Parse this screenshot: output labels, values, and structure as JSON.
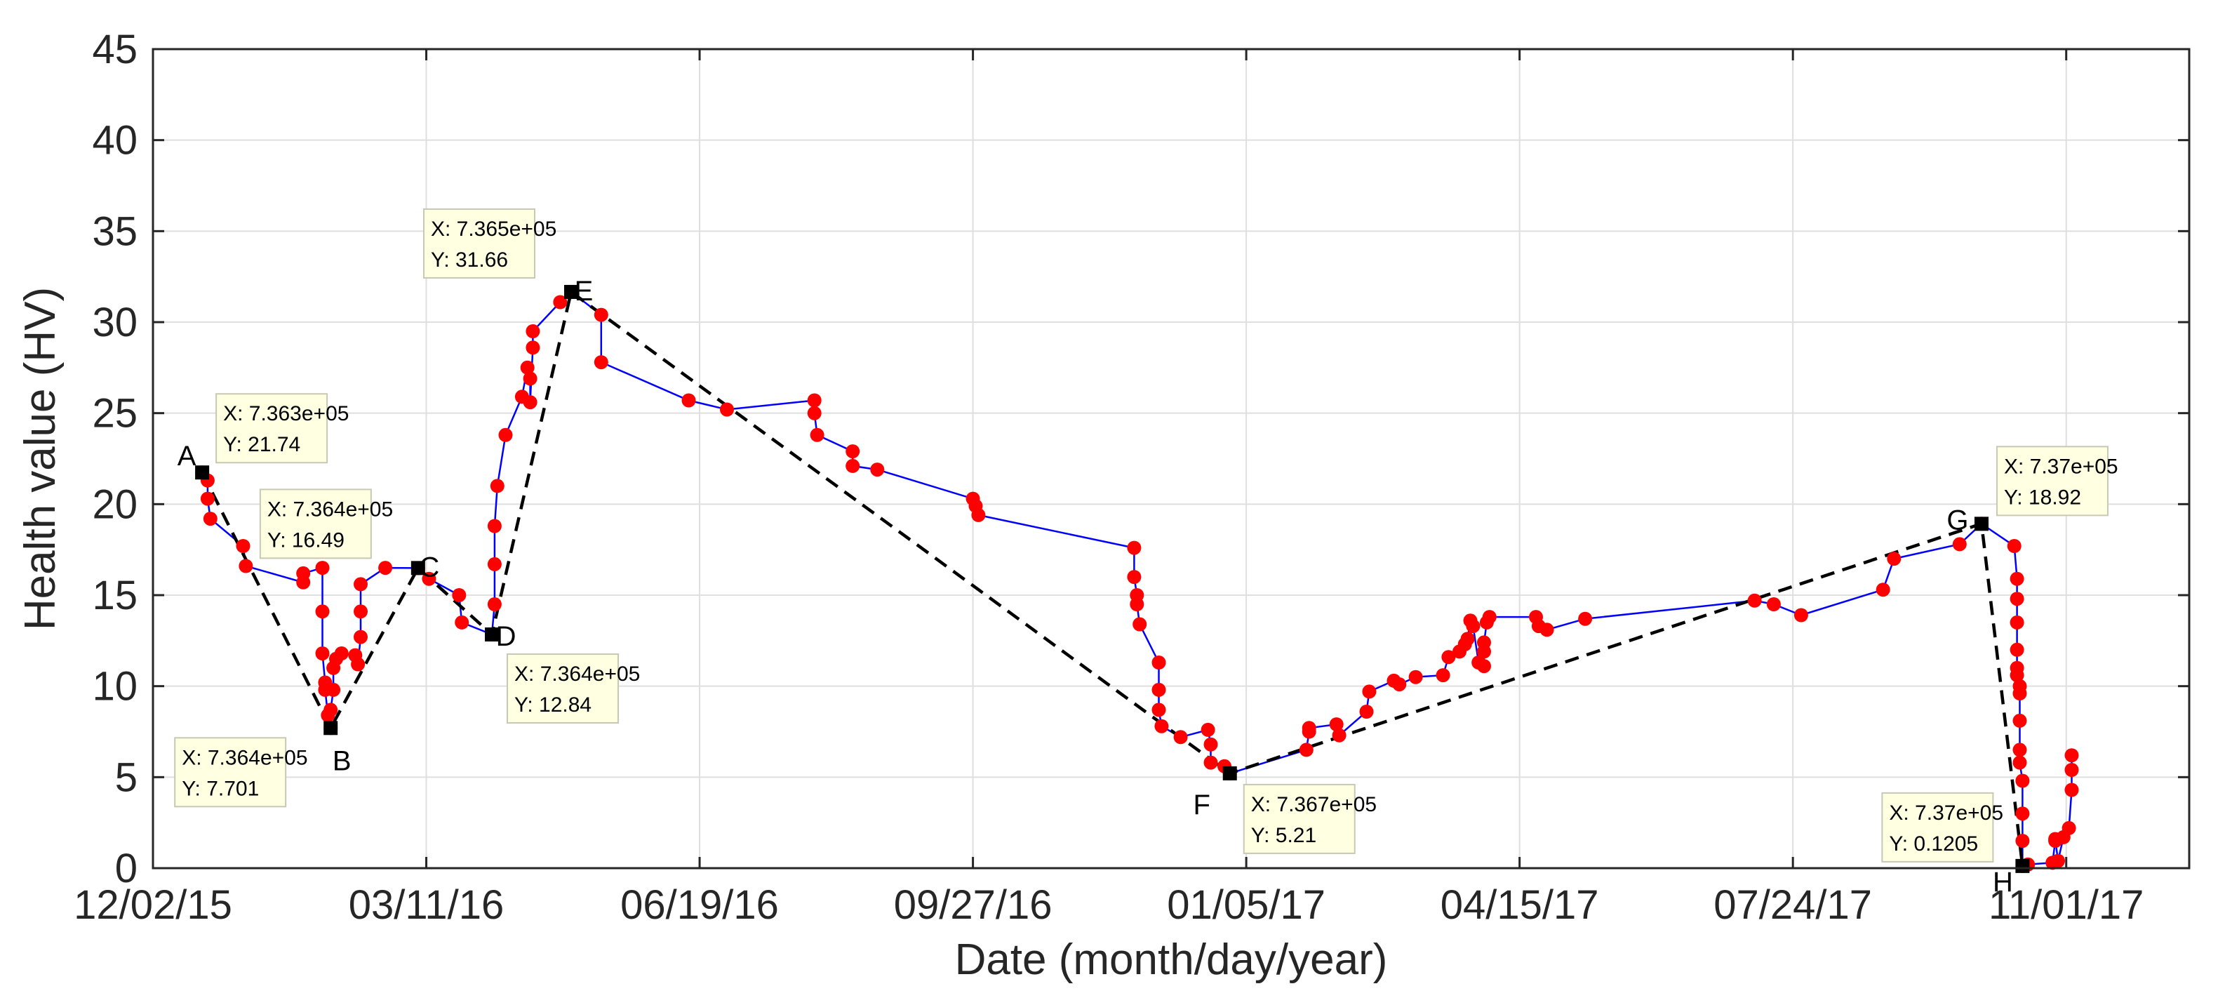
{
  "chart_data": {
    "type": "line",
    "title": "",
    "xlabel": "Date (month/day/year)",
    "ylabel": "Health value (HV)",
    "x_ticks": [
      {
        "label": "12/02/15",
        "date": "2015-12-02"
      },
      {
        "label": "03/11/16",
        "date": "2016-03-11"
      },
      {
        "label": "06/19/16",
        "date": "2016-06-19"
      },
      {
        "label": "09/27/16",
        "date": "2016-09-27"
      },
      {
        "label": "01/05/17",
        "date": "2017-01-05"
      },
      {
        "label": "04/15/17",
        "date": "2017-04-15"
      },
      {
        "label": "07/24/17",
        "date": "2017-07-24"
      },
      {
        "label": "11/01/17",
        "date": "2017-11-01"
      }
    ],
    "xlim": [
      "2015-12-02",
      "2017-12-16"
    ],
    "y_ticks": [
      "0",
      "5",
      "10",
      "15",
      "20",
      "25",
      "30",
      "35",
      "40",
      "45"
    ],
    "ylim": [
      0,
      45
    ],
    "grid": true,
    "colors": {
      "line": "#0000ff",
      "marker": "#ff0000",
      "trend": "#000000",
      "tip_bg": "#ffffe1",
      "tip_border": "#c8c8b4"
    },
    "series": [
      {
        "points": [
          [
            "2015-12-20",
            21.74
          ],
          [
            "2015-12-22",
            21.3
          ],
          [
            "2015-12-22",
            20.3
          ],
          [
            "2015-12-23",
            19.2
          ],
          [
            "2016-01-04",
            17.7
          ],
          [
            "2016-01-05",
            16.6
          ],
          [
            "2016-01-26",
            15.7
          ],
          [
            "2016-01-26",
            16.2
          ],
          [
            "2016-02-02",
            16.5
          ],
          [
            "2016-02-02",
            14.1
          ],
          [
            "2016-02-02",
            11.8
          ],
          [
            "2016-02-03",
            10.2
          ],
          [
            "2016-02-03",
            9.8
          ],
          [
            "2016-02-04",
            8.4
          ],
          [
            "2016-02-05",
            7.701
          ],
          [
            "2016-02-05",
            8.7
          ],
          [
            "2016-02-06",
            9.8
          ],
          [
            "2016-02-06",
            11.0
          ],
          [
            "2016-02-07",
            11.5
          ],
          [
            "2016-02-09",
            11.8
          ],
          [
            "2016-02-14",
            11.7
          ],
          [
            "2016-02-15",
            11.2
          ],
          [
            "2016-02-16",
            12.7
          ],
          [
            "2016-02-16",
            14.1
          ],
          [
            "2016-02-16",
            15.6
          ],
          [
            "2016-02-25",
            16.5
          ],
          [
            "2016-03-08",
            16.49
          ],
          [
            "2016-03-12",
            15.9
          ],
          [
            "2016-03-23",
            15.0
          ],
          [
            "2016-03-24",
            13.5
          ],
          [
            "2016-04-04",
            12.84
          ],
          [
            "2016-04-05",
            14.5
          ],
          [
            "2016-04-05",
            16.7
          ],
          [
            "2016-04-05",
            18.8
          ],
          [
            "2016-04-06",
            21.0
          ],
          [
            "2016-04-09",
            23.8
          ],
          [
            "2016-04-15",
            25.9
          ],
          [
            "2016-04-17",
            27.5
          ],
          [
            "2016-04-18",
            26.9
          ],
          [
            "2016-04-18",
            25.6
          ],
          [
            "2016-04-19",
            28.6
          ],
          [
            "2016-04-19",
            29.5
          ],
          [
            "2016-04-29",
            31.1
          ],
          [
            "2016-05-03",
            31.66
          ],
          [
            "2016-05-14",
            30.4
          ],
          [
            "2016-05-14",
            27.8
          ],
          [
            "2016-06-15",
            25.7
          ],
          [
            "2016-06-29",
            25.2
          ],
          [
            "2016-07-31",
            25.7
          ],
          [
            "2016-07-31",
            25.0
          ],
          [
            "2016-08-01",
            23.8
          ],
          [
            "2016-08-14",
            22.9
          ],
          [
            "2016-08-14",
            22.1
          ],
          [
            "2016-08-23",
            21.9
          ],
          [
            "2016-09-27",
            20.3
          ],
          [
            "2016-09-28",
            19.9
          ],
          [
            "2016-09-29",
            19.4
          ],
          [
            "2016-11-25",
            17.6
          ],
          [
            "2016-11-25",
            16.0
          ],
          [
            "2016-11-26",
            15.0
          ],
          [
            "2016-11-26",
            14.5
          ],
          [
            "2016-11-27",
            13.4
          ],
          [
            "2016-12-04",
            11.3
          ],
          [
            "2016-12-04",
            9.8
          ],
          [
            "2016-12-04",
            8.7
          ],
          [
            "2016-12-05",
            7.8
          ],
          [
            "2016-12-12",
            7.2
          ],
          [
            "2016-12-22",
            7.6
          ],
          [
            "2016-12-23",
            6.8
          ],
          [
            "2016-12-23",
            5.8
          ],
          [
            "2016-12-28",
            5.6
          ],
          [
            "2016-12-30",
            5.21
          ],
          [
            "2017-01-27",
            6.5
          ],
          [
            "2017-01-28",
            7.5
          ],
          [
            "2017-01-28",
            7.7
          ],
          [
            "2017-02-07",
            7.9
          ],
          [
            "2017-02-08",
            7.3
          ],
          [
            "2017-02-18",
            8.6
          ],
          [
            "2017-02-19",
            9.7
          ],
          [
            "2017-02-28",
            10.3
          ],
          [
            "2017-03-02",
            10.1
          ],
          [
            "2017-03-08",
            10.5
          ],
          [
            "2017-03-18",
            10.6
          ],
          [
            "2017-03-20",
            11.6
          ],
          [
            "2017-03-24",
            11.9
          ],
          [
            "2017-03-26",
            12.3
          ],
          [
            "2017-03-27",
            12.6
          ],
          [
            "2017-03-28",
            13.6
          ],
          [
            "2017-03-29",
            13.3
          ],
          [
            "2017-03-31",
            11.3
          ],
          [
            "2017-04-02",
            11.1
          ],
          [
            "2017-04-02",
            11.9
          ],
          [
            "2017-04-02",
            12.4
          ],
          [
            "2017-04-03",
            13.5
          ],
          [
            "2017-04-04",
            13.8
          ],
          [
            "2017-04-21",
            13.8
          ],
          [
            "2017-04-22",
            13.3
          ],
          [
            "2017-04-25",
            13.1
          ],
          [
            "2017-05-09",
            13.7
          ],
          [
            "2017-07-10",
            14.7
          ],
          [
            "2017-07-17",
            14.5
          ],
          [
            "2017-07-27",
            13.9
          ],
          [
            "2017-08-26",
            15.3
          ],
          [
            "2017-08-30",
            17.0
          ],
          [
            "2017-09-23",
            17.8
          ],
          [
            "2017-10-01",
            18.92
          ],
          [
            "2017-10-13",
            17.7
          ],
          [
            "2017-10-14",
            15.9
          ],
          [
            "2017-10-14",
            14.8
          ],
          [
            "2017-10-14",
            13.5
          ],
          [
            "2017-10-14",
            12.0
          ],
          [
            "2017-10-14",
            11.0
          ],
          [
            "2017-10-14",
            10.6
          ],
          [
            "2017-10-15",
            10.0
          ],
          [
            "2017-10-15",
            9.6
          ],
          [
            "2017-10-15",
            8.1
          ],
          [
            "2017-10-15",
            6.5
          ],
          [
            "2017-10-15",
            5.8
          ],
          [
            "2017-10-16",
            4.8
          ],
          [
            "2017-10-16",
            3.0
          ],
          [
            "2017-10-16",
            1.5
          ],
          [
            "2017-10-16",
            0.1205
          ],
          [
            "2017-10-18",
            0.2
          ],
          [
            "2017-10-27",
            0.3
          ],
          [
            "2017-10-28",
            1.5
          ],
          [
            "2017-10-28",
            1.6
          ],
          [
            "2017-10-29",
            0.4
          ],
          [
            "2017-10-31",
            1.7
          ],
          [
            "2017-11-02",
            2.2
          ],
          [
            "2017-11-03",
            4.3
          ],
          [
            "2017-11-03",
            5.4
          ],
          [
            "2017-11-03",
            6.2
          ]
        ]
      }
    ],
    "trend_points": [
      {
        "label": "A",
        "date": "2015-12-20",
        "y": 21.74,
        "tip_x": "X: 7.363e+05",
        "tip_y": "Y: 21.74"
      },
      {
        "label": "B",
        "date": "2016-02-05",
        "y": 7.701,
        "tip_x": "X: 7.364e+05",
        "tip_y": "Y: 7.701"
      },
      {
        "label": "C",
        "date": "2016-03-08",
        "y": 16.49,
        "tip_x": "X: 7.364e+05",
        "tip_y": "Y: 16.49"
      },
      {
        "label": "D",
        "date": "2016-04-04",
        "y": 12.84,
        "tip_x": "X: 7.364e+05",
        "tip_y": "Y: 12.84"
      },
      {
        "label": "E",
        "date": "2016-05-03",
        "y": 31.66,
        "tip_x": "X: 7.365e+05",
        "tip_y": "Y: 31.66"
      },
      {
        "label": "F",
        "date": "2016-12-30",
        "y": 5.21,
        "tip_x": "X: 7.367e+05",
        "tip_y": "Y: 5.21"
      },
      {
        "label": "G",
        "date": "2017-10-01",
        "y": 18.92,
        "tip_x": "X: 7.37e+05",
        "tip_y": "Y: 18.92"
      },
      {
        "label": "H",
        "date": "2017-10-16",
        "y": 0.1205,
        "tip_x": "X: 7.37e+05",
        "tip_y": "Y: 0.1205"
      }
    ]
  }
}
